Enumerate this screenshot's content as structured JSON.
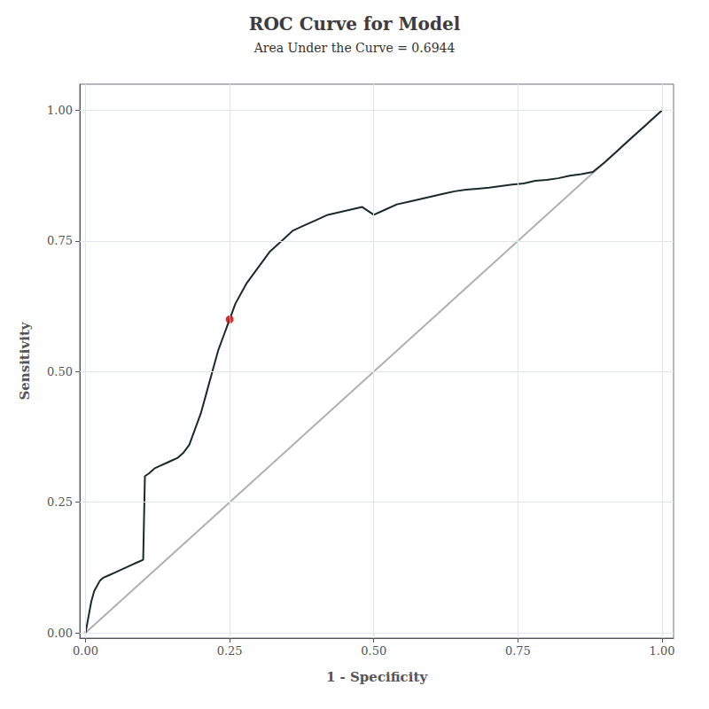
{
  "chart_data": {
    "type": "line",
    "title": "ROC Curve for Model",
    "subtitle": "Area Under the Curve = 0.6944",
    "xlabel": "1 - Specificity",
    "ylabel": "Sensitivity",
    "series": [
      {
        "type": "line",
        "color": "#b0b0b0",
        "x": [
          0,
          1
        ],
        "values": [
          0,
          1
        ]
      },
      {
        "type": "line",
        "color": "#1a2a2a",
        "x": [
          0.0,
          0.005,
          0.01,
          0.015,
          0.02,
          0.025,
          0.03,
          0.04,
          0.05,
          0.06,
          0.07,
          0.08,
          0.09,
          0.1,
          0.103,
          0.11,
          0.115,
          0.12,
          0.13,
          0.14,
          0.15,
          0.16,
          0.17,
          0.18,
          0.19,
          0.2,
          0.21,
          0.22,
          0.23,
          0.24,
          0.25,
          0.26,
          0.27,
          0.28,
          0.3,
          0.32,
          0.34,
          0.36,
          0.38,
          0.4,
          0.42,
          0.44,
          0.46,
          0.48,
          0.5,
          0.52,
          0.54,
          0.56,
          0.58,
          0.6,
          0.62,
          0.64,
          0.66,
          0.68,
          0.7,
          0.72,
          0.74,
          0.76,
          0.78,
          0.8,
          0.82,
          0.84,
          0.86,
          0.87,
          0.88,
          0.9,
          0.92,
          0.94,
          0.96,
          0.97,
          0.98,
          1.0
        ],
        "values": [
          0.0,
          0.03,
          0.06,
          0.08,
          0.09,
          0.1,
          0.105,
          0.11,
          0.115,
          0.12,
          0.125,
          0.13,
          0.135,
          0.14,
          0.3,
          0.305,
          0.31,
          0.315,
          0.32,
          0.325,
          0.33,
          0.335,
          0.345,
          0.36,
          0.39,
          0.42,
          0.46,
          0.5,
          0.54,
          0.57,
          0.6,
          0.63,
          0.65,
          0.67,
          0.7,
          0.73,
          0.75,
          0.77,
          0.78,
          0.79,
          0.8,
          0.805,
          0.81,
          0.815,
          0.8,
          0.81,
          0.82,
          0.825,
          0.83,
          0.835,
          0.84,
          0.845,
          0.848,
          0.85,
          0.852,
          0.855,
          0.858,
          0.86,
          0.865,
          0.867,
          0.87,
          0.875,
          0.878,
          0.88,
          0.882,
          0.9,
          0.92,
          0.94,
          0.96,
          0.97,
          0.98,
          1.0
        ]
      },
      {
        "type": "scatter",
        "color": "#cc0000",
        "marker": "circle",
        "x": [
          0.25
        ],
        "values": [
          0.6
        ]
      }
    ],
    "xlim": [
      -0.01,
      1.02
    ],
    "ylim": [
      -0.01,
      1.05
    ],
    "xticks": [
      {
        "value": 0,
        "label": "0.00"
      },
      {
        "value": 0.25,
        "label": "0.25"
      },
      {
        "value": 0.5,
        "label": "0.50"
      },
      {
        "value": 0.75,
        "label": "0.75"
      },
      {
        "value": 1,
        "label": "1.00"
      }
    ],
    "yticks": [
      {
        "value": 0,
        "label": "0.00"
      },
      {
        "value": 0.25,
        "label": "0.25"
      },
      {
        "value": 0.5,
        "label": "0.50"
      },
      {
        "value": 0.75,
        "label": "0.75"
      },
      {
        "value": 1,
        "label": "1.00"
      }
    ],
    "grid": true
  }
}
